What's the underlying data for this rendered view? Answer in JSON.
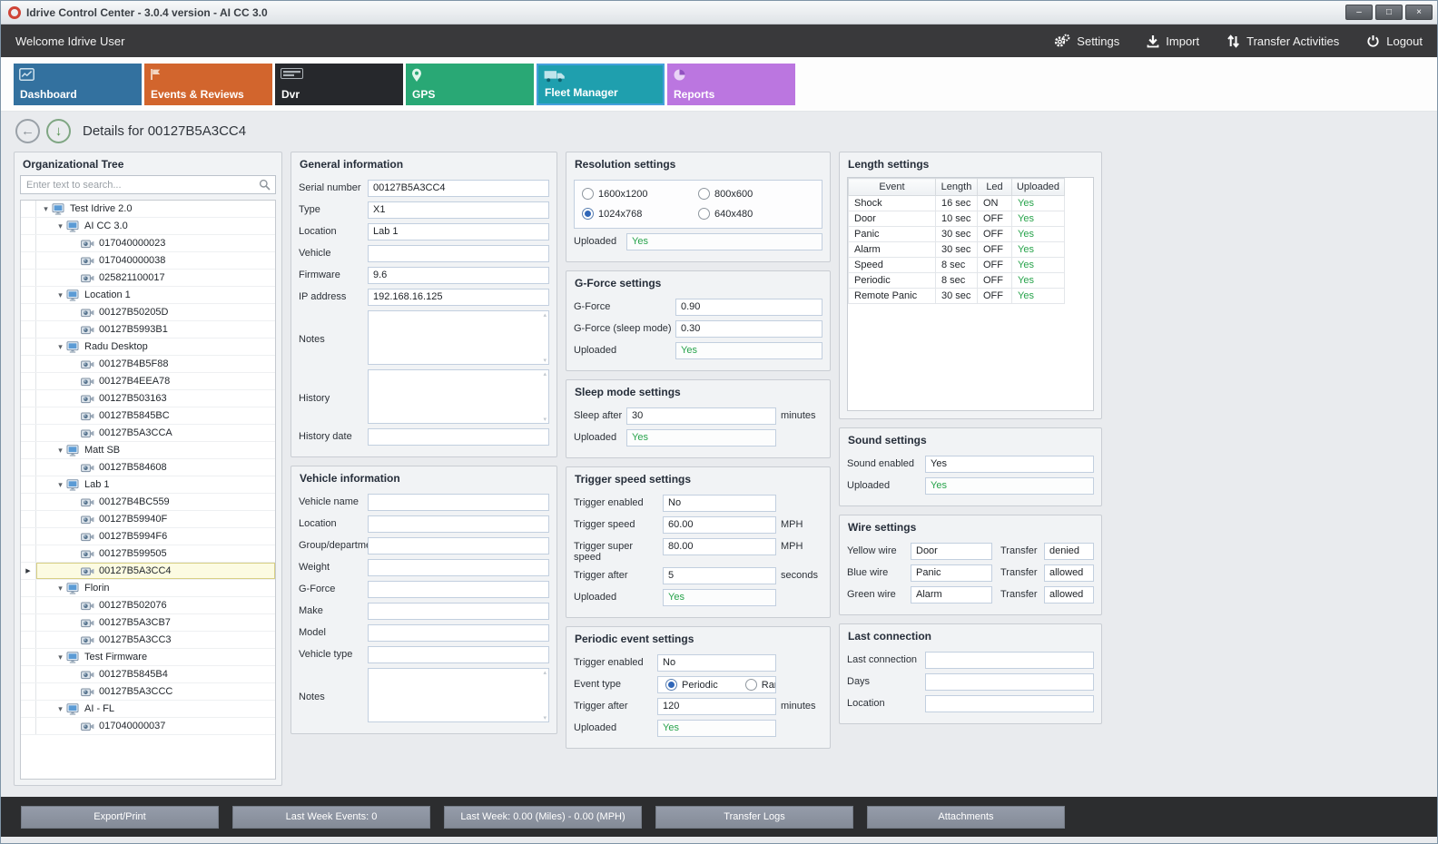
{
  "window": {
    "title": "Idrive Control Center - 3.0.4 version - AI CC 3.0",
    "controls": [
      {
        "id": "minimize",
        "glyph": "–"
      },
      {
        "id": "maximize",
        "glyph": "□"
      },
      {
        "id": "close",
        "glyph": "×"
      }
    ]
  },
  "toolbar": {
    "welcome": "Welcome Idrive User",
    "actions": [
      {
        "id": "settings",
        "label": "Settings",
        "icon": "gears"
      },
      {
        "id": "import",
        "label": "Import",
        "icon": "import"
      },
      {
        "id": "transfer-activities",
        "label": "Transfer Activities",
        "icon": "transfer"
      },
      {
        "id": "logout",
        "label": "Logout",
        "icon": "power"
      }
    ]
  },
  "tabs": [
    {
      "id": "dashboard",
      "label": "Dashboard",
      "color": "#33719f",
      "icon": "dashboard",
      "selected": false
    },
    {
      "id": "events-reviews",
      "label": "Events & Reviews",
      "color": "#d2652d",
      "icon": "events",
      "selected": false
    },
    {
      "id": "dvr",
      "label": "Dvr",
      "color": "#26282c",
      "icon": "dvr",
      "selected": false
    },
    {
      "id": "gps",
      "label": "GPS",
      "color": "#29a875",
      "icon": "gps",
      "selected": false
    },
    {
      "id": "fleet-manager",
      "label": "Fleet Manager",
      "color": "#1f9fae",
      "icon": "fleet",
      "selected": true
    },
    {
      "id": "reports",
      "label": "Reports",
      "color": "#bb76e0",
      "icon": "reports",
      "selected": false
    }
  ],
  "details_header": {
    "title": "Details for 00127B5A3CC4"
  },
  "tree": {
    "title": "Organizational Tree",
    "search_placeholder": "Enter text to search...",
    "nodes": [
      {
        "label": "Test Idrive 2.0",
        "depth": 0,
        "type": "group"
      },
      {
        "label": "AI CC 3.0",
        "depth": 1,
        "type": "group"
      },
      {
        "label": "017040000023",
        "depth": 2,
        "type": "device"
      },
      {
        "label": "017040000038",
        "depth": 2,
        "type": "device"
      },
      {
        "label": "025821100017",
        "depth": 2,
        "type": "device"
      },
      {
        "label": "Location 1",
        "depth": 1,
        "type": "group"
      },
      {
        "label": "00127B50205D",
        "depth": 2,
        "type": "device"
      },
      {
        "label": "00127B5993B1",
        "depth": 2,
        "type": "device"
      },
      {
        "label": "Radu Desktop",
        "depth": 1,
        "type": "group"
      },
      {
        "label": "00127B4B5F88",
        "depth": 2,
        "type": "device"
      },
      {
        "label": "00127B4EEA78",
        "depth": 2,
        "type": "device"
      },
      {
        "label": "00127B503163",
        "depth": 2,
        "type": "device"
      },
      {
        "label": "00127B5845BC",
        "depth": 2,
        "type": "device"
      },
      {
        "label": "00127B5A3CCA",
        "depth": 2,
        "type": "device"
      },
      {
        "label": "Matt SB",
        "depth": 1,
        "type": "group"
      },
      {
        "label": "00127B584608",
        "depth": 2,
        "type": "device"
      },
      {
        "label": "Lab 1",
        "depth": 1,
        "type": "group"
      },
      {
        "label": "00127B4BC559",
        "depth": 2,
        "type": "device"
      },
      {
        "label": "00127B59940F",
        "depth": 2,
        "type": "device"
      },
      {
        "label": "00127B5994F6",
        "depth": 2,
        "type": "device"
      },
      {
        "label": "00127B599505",
        "depth": 2,
        "type": "device"
      },
      {
        "label": "00127B5A3CC4",
        "depth": 2,
        "type": "device",
        "selected": true
      },
      {
        "label": "Florin",
        "depth": 1,
        "type": "group"
      },
      {
        "label": "00127B502076",
        "depth": 2,
        "type": "device"
      },
      {
        "label": "00127B5A3CB7",
        "depth": 2,
        "type": "device"
      },
      {
        "label": "00127B5A3CC3",
        "depth": 2,
        "type": "device"
      },
      {
        "label": "Test Firmware",
        "depth": 1,
        "type": "group"
      },
      {
        "label": "00127B5845B4",
        "depth": 2,
        "type": "device"
      },
      {
        "label": "00127B5A3CCC",
        "depth": 2,
        "type": "device"
      },
      {
        "label": "AI - FL",
        "depth": 1,
        "type": "group"
      },
      {
        "label": "017040000037",
        "depth": 2,
        "type": "device"
      }
    ]
  },
  "general_information": {
    "title": "General information",
    "fields": [
      {
        "label": "Serial number",
        "value": "00127B5A3CC4",
        "type": "text"
      },
      {
        "label": "Type",
        "value": "X1",
        "type": "text"
      },
      {
        "label": "Location",
        "value": "Lab 1",
        "type": "text"
      },
      {
        "label": "Vehicle",
        "value": "",
        "type": "text"
      },
      {
        "label": "Firmware",
        "value": "9.6",
        "type": "text"
      },
      {
        "label": "IP address",
        "value": "192.168.16.125",
        "type": "text"
      },
      {
        "label": "Notes",
        "value": "",
        "type": "textarea"
      },
      {
        "label": "History",
        "value": "",
        "type": "textarea"
      },
      {
        "label": "History date",
        "value": "",
        "type": "text"
      }
    ]
  },
  "vehicle_information": {
    "title": "Vehicle information",
    "fields": [
      {
        "label": "Vehicle name",
        "value": "",
        "type": "text"
      },
      {
        "label": "Location",
        "value": "",
        "type": "text"
      },
      {
        "label": "Group/department",
        "value": "",
        "type": "text"
      },
      {
        "label": "Weight",
        "value": "",
        "type": "text"
      },
      {
        "label": "G-Force",
        "value": "",
        "type": "text"
      },
      {
        "label": "Make",
        "value": "",
        "type": "text"
      },
      {
        "label": "Model",
        "value": "",
        "type": "text"
      },
      {
        "label": "Vehicle type",
        "value": "",
        "type": "text"
      },
      {
        "label": "Notes",
        "value": "",
        "type": "textarea"
      }
    ]
  },
  "resolution_settings": {
    "title": "Resolution settings",
    "options": [
      {
        "label": "1600x1200",
        "checked": false
      },
      {
        "label": "800x600",
        "checked": false
      },
      {
        "label": "1024x768",
        "checked": true
      },
      {
        "label": "640x480",
        "checked": false
      }
    ],
    "fields": [
      {
        "label": "Uploaded",
        "value": "Yes",
        "type": "green"
      }
    ]
  },
  "gforce_settings": {
    "title": "G-Force settings",
    "fields": [
      {
        "label": "G-Force",
        "value": "0.90",
        "type": "text"
      },
      {
        "label": "G-Force (sleep mode)",
        "value": "0.30",
        "type": "text"
      },
      {
        "label": "Uploaded",
        "value": "Yes",
        "type": "green"
      }
    ]
  },
  "sleep_mode_settings": {
    "title": "Sleep mode settings",
    "fields": [
      {
        "label": "Sleep after",
        "value": "30",
        "type": "text",
        "unit": "minutes"
      },
      {
        "label": "Uploaded",
        "value": "Yes",
        "type": "green",
        "unit": ""
      }
    ]
  },
  "trigger_speed_settings": {
    "title": "Trigger speed settings",
    "fields": [
      {
        "label": "Trigger enabled",
        "value": "No",
        "type": "text",
        "unit": ""
      },
      {
        "label": "Trigger speed",
        "value": "60.00",
        "type": "text",
        "unit": "MPH"
      },
      {
        "label": "Trigger super speed",
        "value": "80.00",
        "type": "text",
        "unit": "MPH"
      },
      {
        "label": "Trigger after",
        "value": "5",
        "type": "text",
        "unit": "seconds"
      },
      {
        "label": "Uploaded",
        "value": "Yes",
        "type": "green",
        "unit": ""
      }
    ]
  },
  "periodic_event_settings": {
    "title": "Periodic event settings",
    "fields": [
      {
        "label": "Trigger enabled",
        "value": "No",
        "type": "text",
        "unit": ""
      },
      {
        "label": "Event type",
        "type": "radios",
        "unit": "",
        "options": [
          {
            "label": "Periodic",
            "checked": true
          },
          {
            "label": "Random",
            "checked": false
          }
        ]
      },
      {
        "label": "Trigger after",
        "value": "120",
        "type": "text",
        "unit": "minutes"
      },
      {
        "label": "Uploaded",
        "value": "Yes",
        "type": "green",
        "unit": ""
      }
    ]
  },
  "length_settings": {
    "title": "Length settings",
    "headers": [
      "Event",
      "Length",
      "Led",
      "Uploaded"
    ],
    "rows": [
      [
        "Shock",
        "16 sec",
        "ON",
        "Yes"
      ],
      [
        "Door",
        "10 sec",
        "OFF",
        "Yes"
      ],
      [
        "Panic",
        "30 sec",
        "OFF",
        "Yes"
      ],
      [
        "Alarm",
        "30 sec",
        "OFF",
        "Yes"
      ],
      [
        "Speed",
        "8 sec",
        "OFF",
        "Yes"
      ],
      [
        "Periodic",
        "8 sec",
        "OFF",
        "Yes"
      ],
      [
        "Remote Panic",
        "30 sec",
        "OFF",
        "Yes"
      ]
    ]
  },
  "sound_settings": {
    "title": "Sound settings",
    "fields": [
      {
        "label": "Sound enabled",
        "value": "Yes",
        "type": "text"
      },
      {
        "label": "Uploaded",
        "value": "Yes",
        "type": "green"
      }
    ]
  },
  "wire_settings": {
    "title": "Wire settings",
    "fields": [
      {
        "label": "Yellow wire",
        "value": "Door",
        "type": "wire",
        "label2": "Transfer",
        "value2": "denied"
      },
      {
        "label": "Blue wire",
        "value": "Panic",
        "type": "wire",
        "label2": "Transfer",
        "value2": "allowed"
      },
      {
        "label": "Green wire",
        "value": "Alarm",
        "type": "wire",
        "label2": "Transfer",
        "value2": "allowed"
      }
    ]
  },
  "last_connection": {
    "title": "Last connection",
    "fields": [
      {
        "label": "Last connection",
        "value": "",
        "type": "text"
      },
      {
        "label": "Days",
        "value": "",
        "type": "text"
      },
      {
        "label": "Location",
        "value": "",
        "type": "text"
      }
    ]
  },
  "bottom_bar": {
    "buttons": [
      "Export/Print",
      "Last Week Events: 0",
      "Last Week: 0.00 (Miles) - 0.00 (MPH)",
      "Transfer Logs",
      "Attachments"
    ]
  },
  "colors": {
    "accent_green": "#27a34b",
    "selected_tab_border": "#45a0dc",
    "tree_selected_bg": "#fcfbe2",
    "topbar_bg": "#39393b"
  }
}
